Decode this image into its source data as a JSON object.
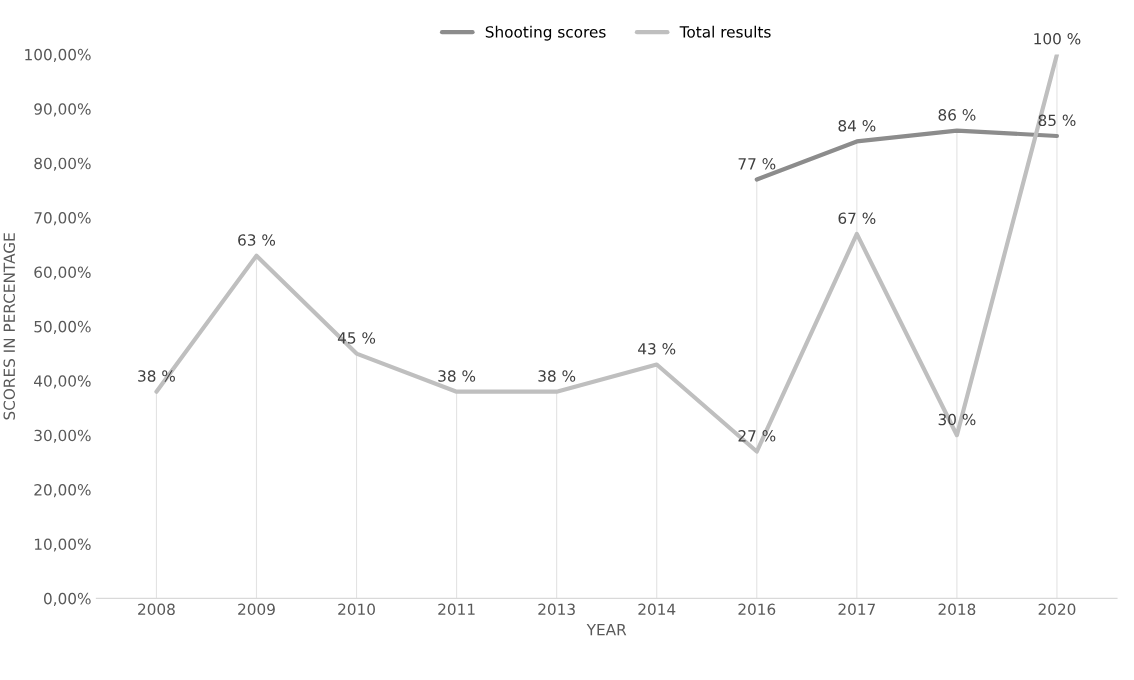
{
  "chart_data": {
    "type": "line",
    "xlabel": "YEAR",
    "ylabel": "SCORES IN PERCENTAGE",
    "categories": [
      "2008",
      "2009",
      "2010",
      "2011",
      "2013",
      "2014",
      "2016",
      "2017",
      "2018",
      "2020"
    ],
    "series": [
      {
        "name": "Shooting scores",
        "color": "#8c8c8c",
        "values": [
          null,
          null,
          null,
          null,
          null,
          null,
          77,
          84,
          86,
          85
        ],
        "value_labels": [
          null,
          null,
          null,
          null,
          null,
          null,
          "77 %",
          "84 %",
          "86 %",
          "85 %"
        ]
      },
      {
        "name": "Total results",
        "color": "#bfbfbf",
        "values": [
          38,
          63,
          45,
          38,
          38,
          43,
          27,
          67,
          30,
          100
        ],
        "value_labels": [
          "38 %",
          "63 %",
          "45 %",
          "38 %",
          "38 %",
          "43 %",
          "27 %",
          "67 %",
          "30 %",
          "100 %"
        ]
      }
    ],
    "ylim": [
      0,
      100
    ],
    "yticks": [
      {
        "value": 0,
        "label": "0,00%"
      },
      {
        "value": 10,
        "label": "10,00%"
      },
      {
        "value": 20,
        "label": "20,00%"
      },
      {
        "value": 30,
        "label": "30,00%"
      },
      {
        "value": 40,
        "label": "40,00%"
      },
      {
        "value": 50,
        "label": "50,00%"
      },
      {
        "value": 60,
        "label": "60,00%"
      },
      {
        "value": 70,
        "label": "70,00%"
      },
      {
        "value": 80,
        "label": "80,00%"
      },
      {
        "value": 90,
        "label": "90,00%"
      },
      {
        "value": 100,
        "label": "100,00%"
      }
    ],
    "grid": "x",
    "legend": "top",
    "marker": "none",
    "line_style": "solid"
  }
}
